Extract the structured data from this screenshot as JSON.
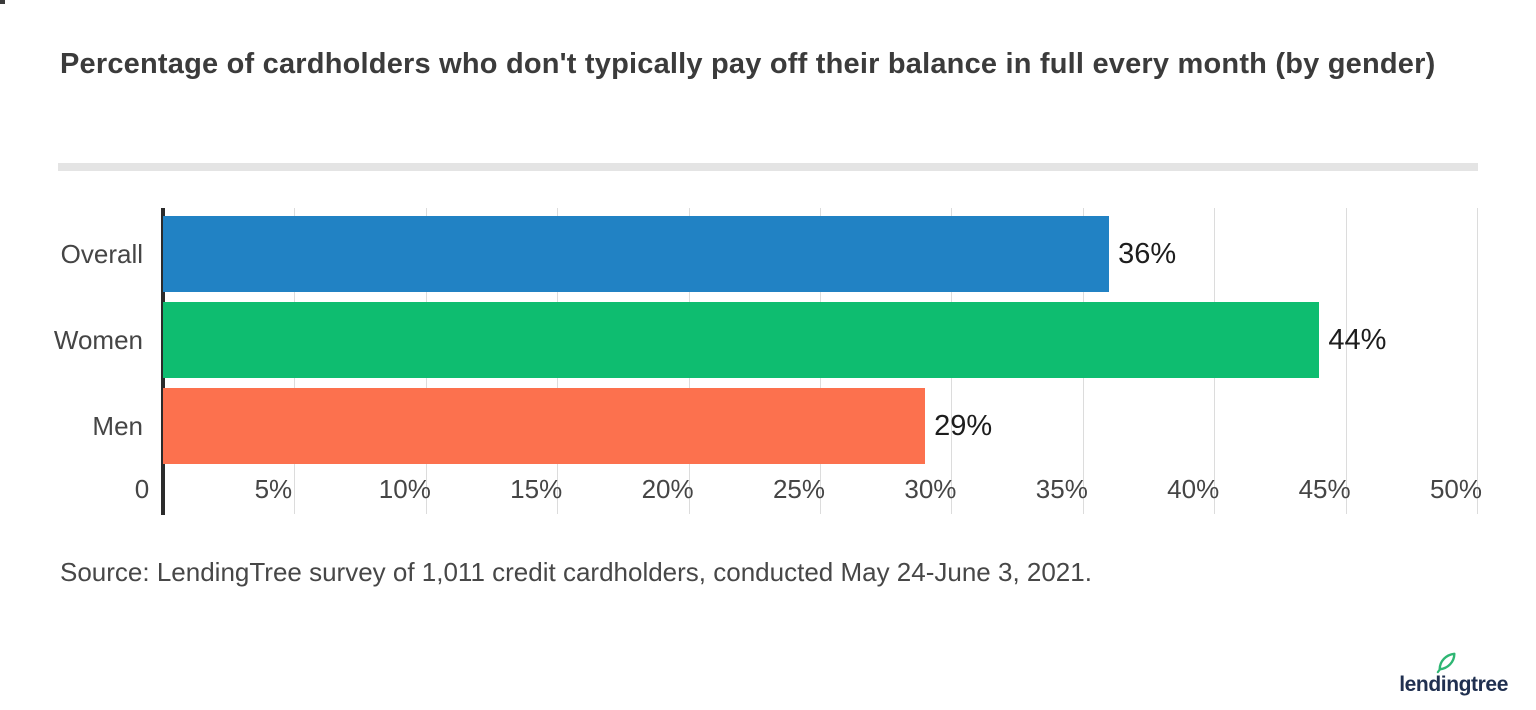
{
  "title": "Percentage of cardholders who don't typically pay off their balance in full every month (by gender)",
  "source": "Source: LendingTree survey of 1,011 credit cardholders, conducted May 24-June 3, 2021.",
  "logo": {
    "text": "lendingtree",
    "text_color": "#203050",
    "leaf_color": "#2eb673"
  },
  "chart_data": {
    "type": "bar",
    "orientation": "horizontal",
    "title": "Percentage of cardholders who don't typically pay off their balance in full every month (by gender)",
    "categories": [
      "Overall",
      "Women",
      "Men"
    ],
    "values": [
      36,
      44,
      29
    ],
    "value_labels": [
      "36%",
      "44%",
      "29%"
    ],
    "bar_colors": [
      "#2182c4",
      "#0ebd70",
      "#fc714e"
    ],
    "x_ticks": [
      {
        "value": 0,
        "label": "0"
      },
      {
        "value": 5,
        "label": "5%"
      },
      {
        "value": 10,
        "label": "10%"
      },
      {
        "value": 15,
        "label": "15%"
      },
      {
        "value": 20,
        "label": "20%"
      },
      {
        "value": 25,
        "label": "25%"
      },
      {
        "value": 30,
        "label": "30%"
      },
      {
        "value": 35,
        "label": "35%"
      },
      {
        "value": 40,
        "label": "40%"
      },
      {
        "value": 45,
        "label": "45%"
      },
      {
        "value": 50,
        "label": "50%"
      }
    ],
    "xlim": [
      0,
      50
    ],
    "xlabel": "",
    "ylabel": "",
    "grid": true,
    "legend": "none",
    "axis_color": "#2b2b2b",
    "gridline_color": "#dcdcdc",
    "background": "#ffffff"
  }
}
